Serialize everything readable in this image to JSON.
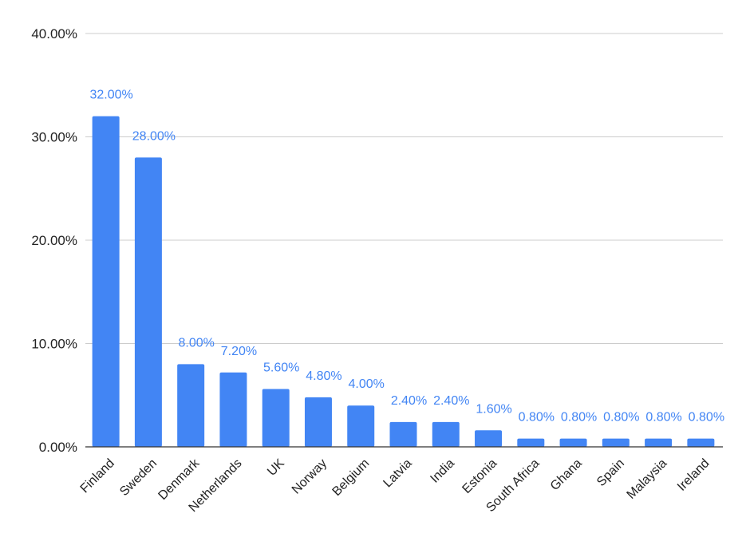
{
  "chart_data": {
    "type": "bar",
    "title": "",
    "xlabel": "",
    "ylabel": "",
    "categories": [
      "Finland",
      "Sweden",
      "Denmark",
      "Netherlands",
      "UK",
      "Norway",
      "Belgium",
      "Latvia",
      "India",
      "Estonia",
      "South Africa",
      "Ghana",
      "Spain",
      "Malaysia",
      "Ireland"
    ],
    "values": [
      32.0,
      28.0,
      8.0,
      7.2,
      5.6,
      4.8,
      4.0,
      2.4,
      2.4,
      1.6,
      0.8,
      0.8,
      0.8,
      0.8,
      0.8
    ],
    "data_labels": [
      "32.00%",
      "28.00%",
      "8.00%",
      "7.20%",
      "5.60%",
      "4.80%",
      "4.00%",
      "2.40%",
      "2.40%",
      "1.60%",
      "0.80%",
      "0.80%",
      "0.80%",
      "0.80%",
      "0.80%"
    ],
    "ylim": [
      0,
      40
    ],
    "yticks": [
      0,
      10,
      20,
      30,
      40
    ],
    "ytick_labels": [
      "0.00%",
      "10.00%",
      "20.00%",
      "30.00%",
      "40.00%"
    ],
    "grid": true,
    "legend": "none",
    "colors": {
      "bar": "#4285f4",
      "data_label": "#4285f4",
      "grid": "#cccccc",
      "axis": "#333333",
      "text": "#222222"
    }
  }
}
